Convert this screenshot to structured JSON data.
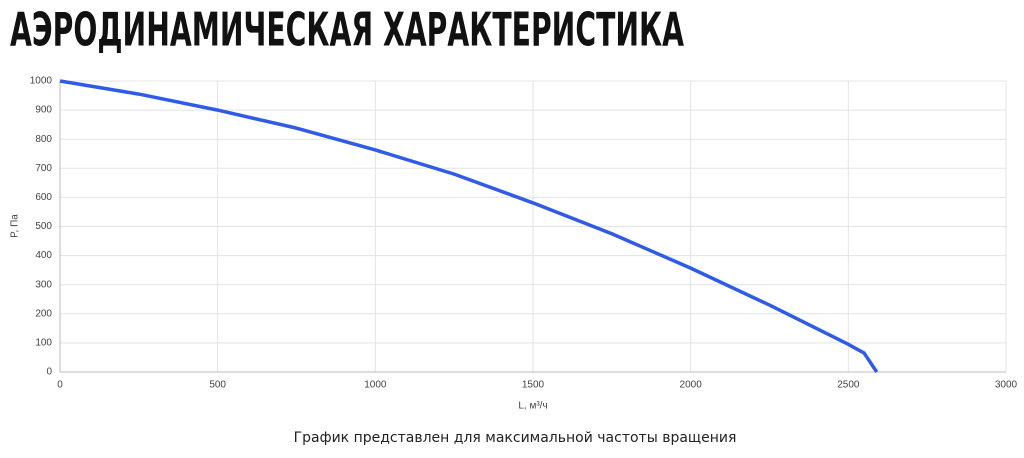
{
  "chart_data": {
    "type": "line",
    "title": "АЭРОДИНАМИЧЕСКАЯ ХАРАКТЕРИСТИКА",
    "x_label": "L, м³/ч",
    "y_label": "P, Па",
    "note": "График представлен для максимальной частоты вращения",
    "x": [
      0,
      250,
      500,
      750,
      1000,
      1250,
      1500,
      1750,
      2000,
      2250,
      2500,
      2550,
      2590
    ],
    "series": [
      {
        "name": "P",
        "color": "#2f5be6",
        "values": [
          1000,
          955,
          900,
          838,
          763,
          680,
          581,
          475,
          357,
          230,
          95,
          65,
          0
        ]
      }
    ],
    "xlim": [
      0,
      3000
    ],
    "xticks": [
      0,
      500,
      1000,
      1500,
      2000,
      2500,
      3000
    ],
    "ylim": [
      0,
      1000
    ],
    "yticks": [
      0,
      100,
      200,
      300,
      400,
      500,
      600,
      700,
      800,
      900,
      1000
    ],
    "grid": true
  }
}
